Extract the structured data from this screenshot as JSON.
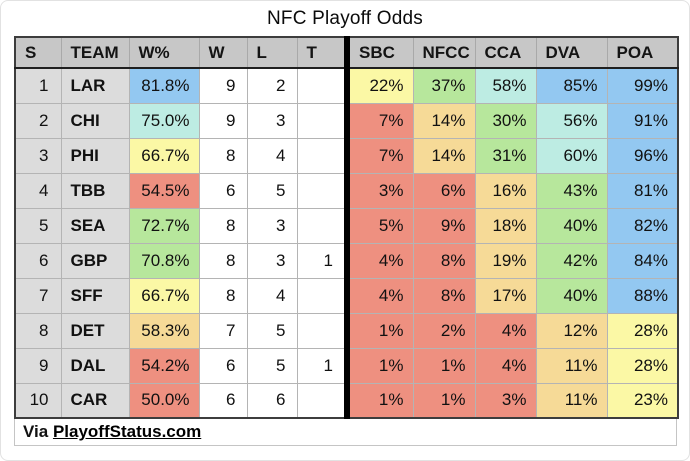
{
  "title": "NFC Playoff Odds",
  "footer": {
    "prefix": "Via ",
    "link_text": "PlayoffStatus.com"
  },
  "colors": {
    "blue": "#93c8f1",
    "teal": "#bdece3",
    "green": "#b7e79c",
    "yellow": "#fbf8a5",
    "orange": "#f6da97",
    "red": "#ee9080",
    "header_bg": "#c7c7c7",
    "label_bg": "#dcdcdc"
  },
  "table": {
    "columns": [
      {
        "key": "seed",
        "label": "S",
        "type": "seed"
      },
      {
        "key": "team",
        "label": "TEAM",
        "type": "team"
      },
      {
        "key": "wpct",
        "label": "W%",
        "type": "colored"
      },
      {
        "key": "w",
        "label": "W",
        "type": "plain"
      },
      {
        "key": "l",
        "label": "L",
        "type": "plain"
      },
      {
        "key": "t",
        "label": "T",
        "type": "plain"
      },
      {
        "key": "sbc",
        "label": "SBC",
        "type": "colored",
        "divider": true
      },
      {
        "key": "nfcc",
        "label": "NFCC",
        "type": "colored"
      },
      {
        "key": "cca",
        "label": "CCA",
        "type": "colored"
      },
      {
        "key": "dva",
        "label": "DVA",
        "type": "colored"
      },
      {
        "key": "poa",
        "label": "POA",
        "type": "colored"
      }
    ],
    "rows": [
      {
        "seed": "1",
        "team": "LAR",
        "wpct": [
          "81.8%",
          "blue"
        ],
        "w": "9",
        "l": "2",
        "t": "",
        "sbc": [
          "22%",
          "yellow"
        ],
        "nfcc": [
          "37%",
          "green"
        ],
        "cca": [
          "58%",
          "teal"
        ],
        "dva": [
          "85%",
          "blue"
        ],
        "poa": [
          "99%",
          "blue"
        ]
      },
      {
        "seed": "2",
        "team": "CHI",
        "wpct": [
          "75.0%",
          "teal"
        ],
        "w": "9",
        "l": "3",
        "t": "",
        "sbc": [
          "7%",
          "red"
        ],
        "nfcc": [
          "14%",
          "orange"
        ],
        "cca": [
          "30%",
          "green"
        ],
        "dva": [
          "56%",
          "teal"
        ],
        "poa": [
          "91%",
          "blue"
        ]
      },
      {
        "seed": "3",
        "team": "PHI",
        "wpct": [
          "66.7%",
          "yellow"
        ],
        "w": "8",
        "l": "4",
        "t": "",
        "sbc": [
          "7%",
          "red"
        ],
        "nfcc": [
          "14%",
          "orange"
        ],
        "cca": [
          "31%",
          "green"
        ],
        "dva": [
          "60%",
          "teal"
        ],
        "poa": [
          "96%",
          "blue"
        ]
      },
      {
        "seed": "4",
        "team": "TBB",
        "wpct": [
          "54.5%",
          "red"
        ],
        "w": "6",
        "l": "5",
        "t": "",
        "sbc": [
          "3%",
          "red"
        ],
        "nfcc": [
          "6%",
          "red"
        ],
        "cca": [
          "16%",
          "orange"
        ],
        "dva": [
          "43%",
          "green"
        ],
        "poa": [
          "81%",
          "blue"
        ]
      },
      {
        "seed": "5",
        "team": "SEA",
        "wpct": [
          "72.7%",
          "green"
        ],
        "w": "8",
        "l": "3",
        "t": "",
        "sbc": [
          "5%",
          "red"
        ],
        "nfcc": [
          "9%",
          "red"
        ],
        "cca": [
          "18%",
          "orange"
        ],
        "dva": [
          "40%",
          "green"
        ],
        "poa": [
          "82%",
          "blue"
        ]
      },
      {
        "seed": "6",
        "team": "GBP",
        "wpct": [
          "70.8%",
          "green"
        ],
        "w": "8",
        "l": "3",
        "t": "1",
        "sbc": [
          "4%",
          "red"
        ],
        "nfcc": [
          "8%",
          "red"
        ],
        "cca": [
          "19%",
          "orange"
        ],
        "dva": [
          "42%",
          "green"
        ],
        "poa": [
          "84%",
          "blue"
        ]
      },
      {
        "seed": "7",
        "team": "SFF",
        "wpct": [
          "66.7%",
          "yellow"
        ],
        "w": "8",
        "l": "4",
        "t": "",
        "sbc": [
          "4%",
          "red"
        ],
        "nfcc": [
          "8%",
          "red"
        ],
        "cca": [
          "17%",
          "orange"
        ],
        "dva": [
          "40%",
          "green"
        ],
        "poa": [
          "88%",
          "blue"
        ]
      },
      {
        "seed": "8",
        "team": "DET",
        "wpct": [
          "58.3%",
          "orange"
        ],
        "w": "7",
        "l": "5",
        "t": "",
        "sbc": [
          "1%",
          "red"
        ],
        "nfcc": [
          "2%",
          "red"
        ],
        "cca": [
          "4%",
          "red"
        ],
        "dva": [
          "12%",
          "orange"
        ],
        "poa": [
          "28%",
          "yellow"
        ]
      },
      {
        "seed": "9",
        "team": "DAL",
        "wpct": [
          "54.2%",
          "red"
        ],
        "w": "6",
        "l": "5",
        "t": "1",
        "sbc": [
          "1%",
          "red"
        ],
        "nfcc": [
          "1%",
          "red"
        ],
        "cca": [
          "4%",
          "red"
        ],
        "dva": [
          "11%",
          "orange"
        ],
        "poa": [
          "28%",
          "yellow"
        ]
      },
      {
        "seed": "10",
        "team": "CAR",
        "wpct": [
          "50.0%",
          "red"
        ],
        "w": "6",
        "l": "6",
        "t": "",
        "sbc": [
          "1%",
          "red"
        ],
        "nfcc": [
          "1%",
          "red"
        ],
        "cca": [
          "3%",
          "red"
        ],
        "dva": [
          "11%",
          "orange"
        ],
        "poa": [
          "23%",
          "yellow"
        ]
      }
    ]
  }
}
